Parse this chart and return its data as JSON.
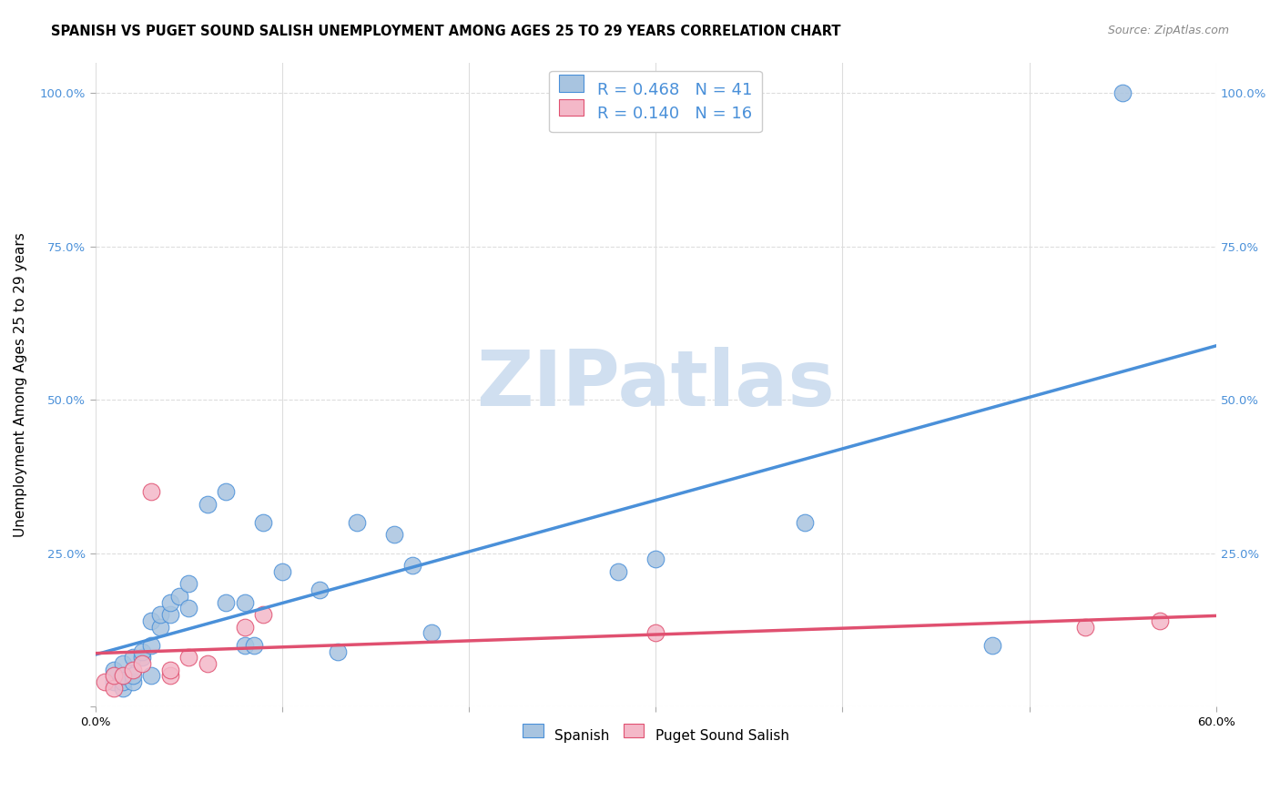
{
  "title": "SPANISH VS PUGET SOUND SALISH UNEMPLOYMENT AMONG AGES 25 TO 29 YEARS CORRELATION CHART",
  "source": "Source: ZipAtlas.com",
  "xlabel": "",
  "ylabel": "Unemployment Among Ages 25 to 29 years",
  "xlim": [
    0.0,
    0.6
  ],
  "ylim": [
    0.0,
    1.05
  ],
  "xticks": [
    0.0,
    0.1,
    0.2,
    0.3,
    0.4,
    0.5,
    0.6
  ],
  "xtick_labels": [
    "0.0%",
    "",
    "",
    "",
    "",
    "",
    "60.0%"
  ],
  "yticks": [
    0.0,
    0.25,
    0.5,
    0.75,
    1.0
  ],
  "ytick_labels": [
    "",
    "25.0%",
    "50.0%",
    "75.0%",
    "100.0%"
  ],
  "background_color": "#ffffff",
  "grid_color": "#dddddd",
  "spanish_color": "#a8c4e0",
  "spanish_line_color": "#4a90d9",
  "puget_color": "#f4b8c8",
  "puget_line_color": "#e05070",
  "legend_text_color": "#4a90d9",
  "watermark_text": "ZIPatlas",
  "watermark_color": "#d0dff0",
  "R_spanish": 0.468,
  "N_spanish": 41,
  "R_puget": 0.14,
  "N_puget": 16,
  "spanish_x": [
    0.01,
    0.01,
    0.01,
    0.015,
    0.015,
    0.015,
    0.015,
    0.02,
    0.02,
    0.02,
    0.025,
    0.025,
    0.03,
    0.03,
    0.03,
    0.035,
    0.035,
    0.04,
    0.04,
    0.045,
    0.05,
    0.05,
    0.06,
    0.07,
    0.07,
    0.08,
    0.08,
    0.085,
    0.09,
    0.1,
    0.12,
    0.13,
    0.14,
    0.16,
    0.17,
    0.18,
    0.28,
    0.3,
    0.38,
    0.48,
    0.55
  ],
  "spanish_y": [
    0.04,
    0.05,
    0.06,
    0.03,
    0.04,
    0.05,
    0.07,
    0.04,
    0.05,
    0.08,
    0.08,
    0.09,
    0.05,
    0.1,
    0.14,
    0.13,
    0.15,
    0.15,
    0.17,
    0.18,
    0.16,
    0.2,
    0.33,
    0.17,
    0.35,
    0.1,
    0.17,
    0.1,
    0.3,
    0.22,
    0.19,
    0.09,
    0.3,
    0.28,
    0.23,
    0.12,
    0.22,
    0.24,
    0.3,
    0.1,
    1.0
  ],
  "puget_x": [
    0.005,
    0.01,
    0.01,
    0.015,
    0.02,
    0.025,
    0.03,
    0.04,
    0.04,
    0.05,
    0.06,
    0.08,
    0.09,
    0.3,
    0.53,
    0.57
  ],
  "puget_y": [
    0.04,
    0.03,
    0.05,
    0.05,
    0.06,
    0.07,
    0.35,
    0.05,
    0.06,
    0.08,
    0.07,
    0.13,
    0.15,
    0.12,
    0.13,
    0.14
  ],
  "title_fontsize": 10.5,
  "source_fontsize": 9,
  "axis_label_fontsize": 11,
  "tick_fontsize": 9.5,
  "legend_fontsize": 13
}
